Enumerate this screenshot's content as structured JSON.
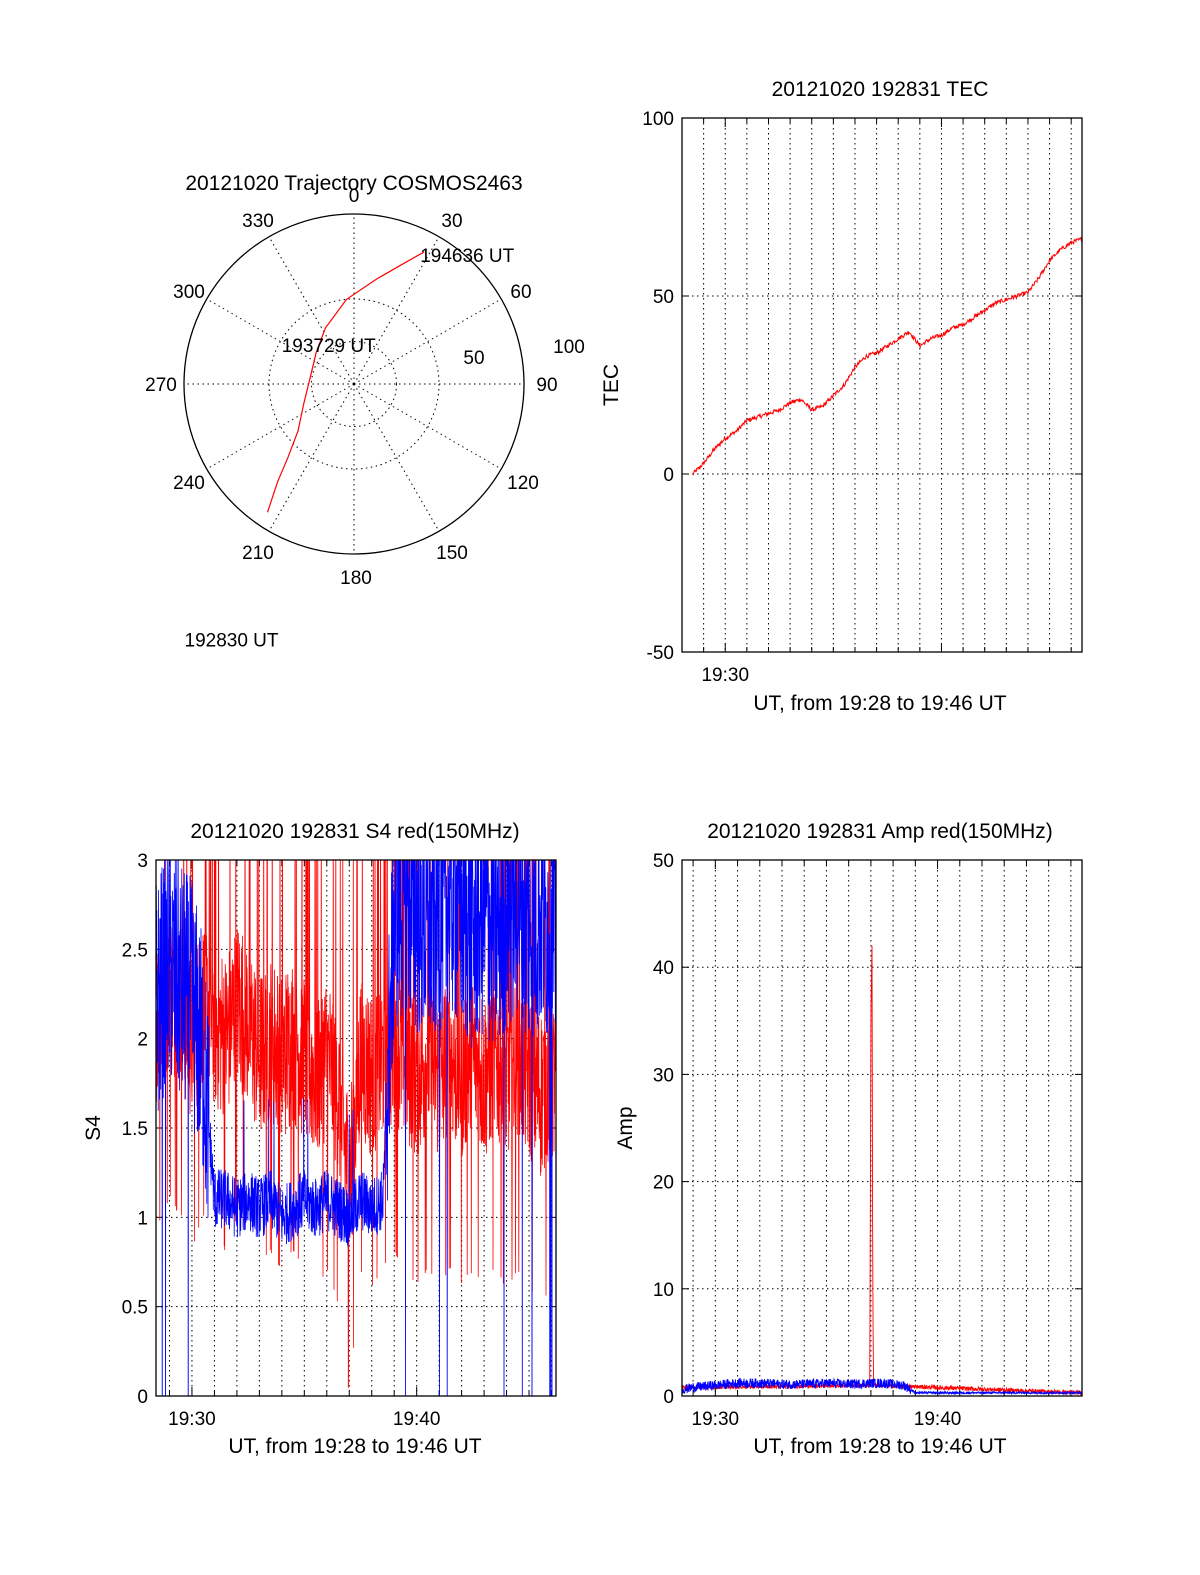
{
  "colors": {
    "red": "#ff0000",
    "blue": "#0000ff"
  },
  "chart_data": [
    {
      "type": "polar",
      "title": "20121020 Trajectory COSMOS2463",
      "azimuth_labels": [
        "0",
        "30",
        "60",
        "90",
        "120",
        "150",
        "180",
        "210",
        "240",
        "270",
        "300",
        "330"
      ],
      "radial_labels": [
        "50",
        "100"
      ],
      "rlim": [
        0,
        100
      ],
      "grid": true,
      "trajectory": {
        "color": "red",
        "points": [
          {
            "az": 214,
            "r": 91
          },
          {
            "az": 218,
            "r": 73
          },
          {
            "az": 222,
            "r": 58
          },
          {
            "az": 230,
            "r": 43
          },
          {
            "az": 248,
            "r": 32
          },
          {
            "az": 280,
            "r": 26
          },
          {
            "az": 310,
            "r": 29
          },
          {
            "az": 333,
            "r": 37
          },
          {
            "az": 355,
            "r": 50
          },
          {
            "az": 12,
            "r": 63
          },
          {
            "az": 22,
            "r": 76
          },
          {
            "az": 28,
            "r": 88
          }
        ]
      },
      "annotations": [
        {
          "text": "194636 UT",
          "az": 28,
          "r": 88
        },
        {
          "text": "193729 UT",
          "az": 300,
          "r": 26
        },
        {
          "text": "192830 UT",
          "az": 214,
          "r": 91
        }
      ]
    },
    {
      "type": "line",
      "title": "20121020 192831 TEC",
      "ylabel": "TEC",
      "xlabel": "UT, from 19:28 to 19:46 UT",
      "xlim": [
        28,
        46.5
      ],
      "ylim": [
        -50,
        100
      ],
      "yticks": [
        -50,
        0,
        50,
        100
      ],
      "xtick_labels": [
        "19:30"
      ],
      "grid": true,
      "series": [
        {
          "color": "red",
          "x": [
            28.5,
            29,
            29.5,
            30,
            30.5,
            31,
            31.5,
            32,
            32.5,
            33,
            33.5,
            34,
            34.5,
            35,
            35.5,
            36,
            36.5,
            37,
            37.5,
            38,
            38.5,
            39,
            39.5,
            40,
            40.5,
            41,
            41.5,
            42,
            42.5,
            43,
            43.5,
            44,
            44.5,
            45,
            45.5,
            46,
            46.5
          ],
          "values": [
            0,
            3,
            7,
            10,
            12,
            15,
            16,
            17,
            18,
            20,
            21,
            18,
            19,
            22,
            25,
            30,
            33,
            34,
            36,
            38,
            40,
            36,
            38,
            39,
            41,
            42,
            44,
            46,
            48,
            49,
            50,
            51,
            55,
            60,
            63,
            65,
            66
          ]
        }
      ]
    },
    {
      "type": "line",
      "title": "20121020 192831 S4 red(150MHz)",
      "ylabel": "S4",
      "xlabel": "UT, from 19:28 to 19:46 UT",
      "xlim": [
        28.4,
        46.2
      ],
      "ylim": [
        0,
        3
      ],
      "yticks": [
        0,
        0.5,
        1,
        1.5,
        2,
        2.5,
        3
      ],
      "xtick_labels": [
        "19:30",
        "19:40"
      ],
      "grid": true,
      "series": [
        {
          "color": "red",
          "x": [
            28.4,
            29,
            29.5,
            30,
            30.5,
            31,
            31.5,
            32,
            32.5,
            33,
            33.5,
            34,
            34.5,
            35,
            35.5,
            36,
            36.5,
            37,
            37.5,
            38,
            38.5,
            39,
            39.5,
            40,
            40.5,
            41,
            41.5,
            42,
            42.5,
            43,
            43.5,
            44,
            44.5,
            45,
            45.5,
            46,
            46.2
          ],
          "values": [
            2.1,
            2.3,
            2.2,
            2.0,
            2.2,
            2.1,
            2.0,
            2.2,
            2.1,
            1.9,
            2.0,
            1.9,
            2.0,
            1.9,
            1.8,
            1.9,
            1.7,
            1.2,
            1.9,
            1.8,
            1.9,
            2.0,
            1.9,
            1.8,
            1.9,
            1.8,
            1.9,
            1.8,
            1.9,
            1.8,
            1.9,
            1.8,
            1.9,
            1.8,
            1.7,
            1.8,
            1.7
          ]
        },
        {
          "color": "blue",
          "x": [
            28.4,
            29,
            29.5,
            30,
            30.5,
            31,
            31.5,
            32,
            32.5,
            33,
            33.5,
            34,
            34.5,
            35,
            35.5,
            36,
            36.5,
            37,
            37.5,
            38,
            38.5,
            39,
            39.5,
            40,
            40.5,
            41,
            41.5,
            42,
            42.5,
            43,
            43.5,
            44,
            44.5,
            45,
            45.5,
            46,
            46.2
          ],
          "values": [
            2.2,
            2.4,
            2.3,
            2.2,
            1.9,
            1.1,
            1.1,
            1.05,
            1.1,
            1.05,
            1.1,
            1.0,
            1.05,
            1.1,
            1.05,
            1.1,
            1.05,
            1.0,
            1.1,
            1.05,
            1.1,
            2.7,
            2.8,
            2.7,
            2.6,
            2.7,
            2.8,
            2.7,
            2.6,
            2.7,
            2.6,
            2.7,
            2.8,
            2.6,
            2.7,
            2.6,
            2.5
          ]
        }
      ]
    },
    {
      "type": "line",
      "title": "20121020 192831 Amp red(150MHz)",
      "ylabel": "Amp",
      "xlabel": "UT, from 19:28 to 19:46 UT",
      "xlim": [
        28.5,
        46.5
      ],
      "ylim": [
        0,
        50
      ],
      "yticks": [
        0,
        10,
        20,
        30,
        40,
        50
      ],
      "xtick_labels": [
        "19:30",
        "19:40"
      ],
      "grid": true,
      "series": [
        {
          "color": "red",
          "x": [
            28.5,
            36.95,
            37.0,
            37.05,
            37.08,
            37.12,
            46.5
          ],
          "values": [
            0.8,
            1.0,
            35,
            42,
            12,
            1.0,
            0.3
          ]
        },
        {
          "color": "blue",
          "x": [
            28.5,
            29,
            30,
            31,
            32,
            33,
            34,
            35,
            36,
            37,
            37.5,
            38,
            38.5,
            39,
            39.5,
            40,
            41,
            42,
            43,
            44,
            45,
            46,
            46.5
          ],
          "values": [
            0.6,
            0.8,
            1.0,
            1.2,
            1.2,
            1.1,
            1.1,
            1.2,
            1.1,
            1.2,
            1.2,
            1.1,
            1.0,
            0.3,
            0.3,
            0.3,
            0.3,
            0.3,
            0.3,
            0.3,
            0.3,
            0.3,
            0.3
          ]
        }
      ]
    }
  ]
}
